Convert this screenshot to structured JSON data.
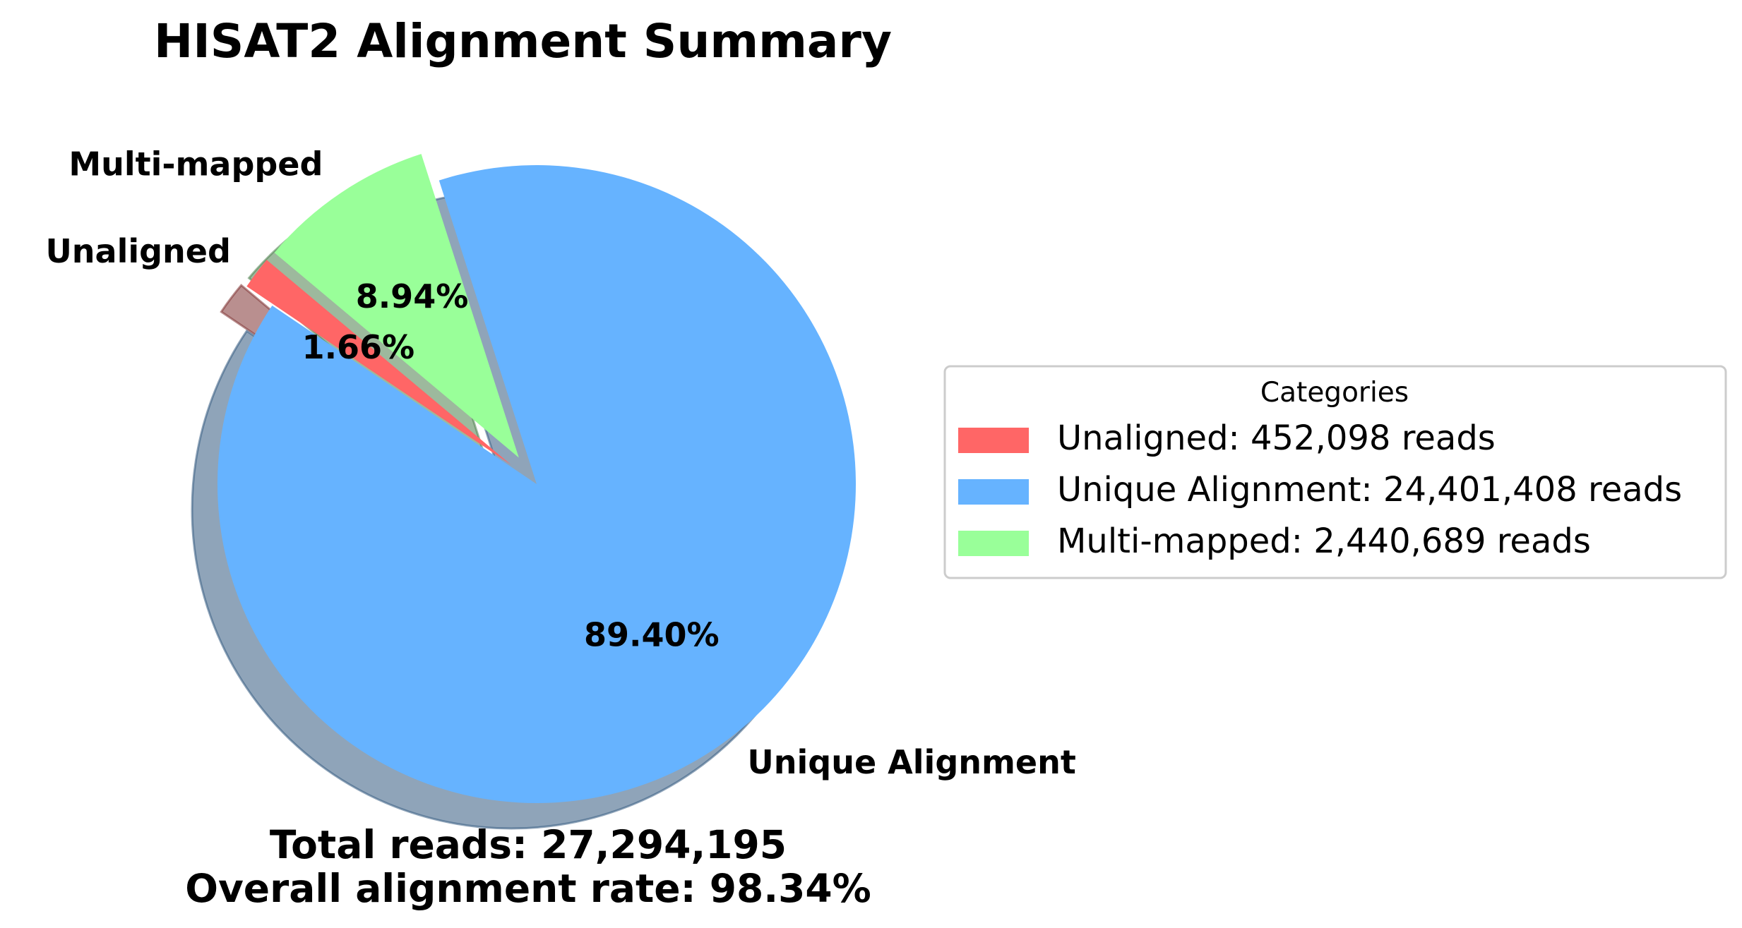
{
  "chart_data": {
    "type": "pie",
    "title": "HISAT2 Alignment Summary",
    "slices": [
      {
        "label": "Unaligned",
        "value": 452098,
        "percent_label": "1.66%",
        "color": "#ff6666",
        "explode": true
      },
      {
        "label": "Unique Alignment",
        "value": 24401408,
        "percent_label": "89.40%",
        "color": "#66b3ff",
        "explode": false
      },
      {
        "label": "Multi-mapped",
        "value": 2440689,
        "percent_label": "8.94%",
        "color": "#99ff99",
        "explode": true
      }
    ],
    "start_angle_deg": 140,
    "shadow": true,
    "legend": {
      "title": "Categories",
      "placement": "right",
      "entries": [
        "Unaligned: 452,098 reads",
        "Unique Alignment: 24,401,408 reads",
        "Multi-mapped: 2,440,689 reads"
      ]
    },
    "footer": {
      "line1": "Total reads: 27,294,195",
      "line2": "Overall alignment rate: 98.34%"
    }
  }
}
